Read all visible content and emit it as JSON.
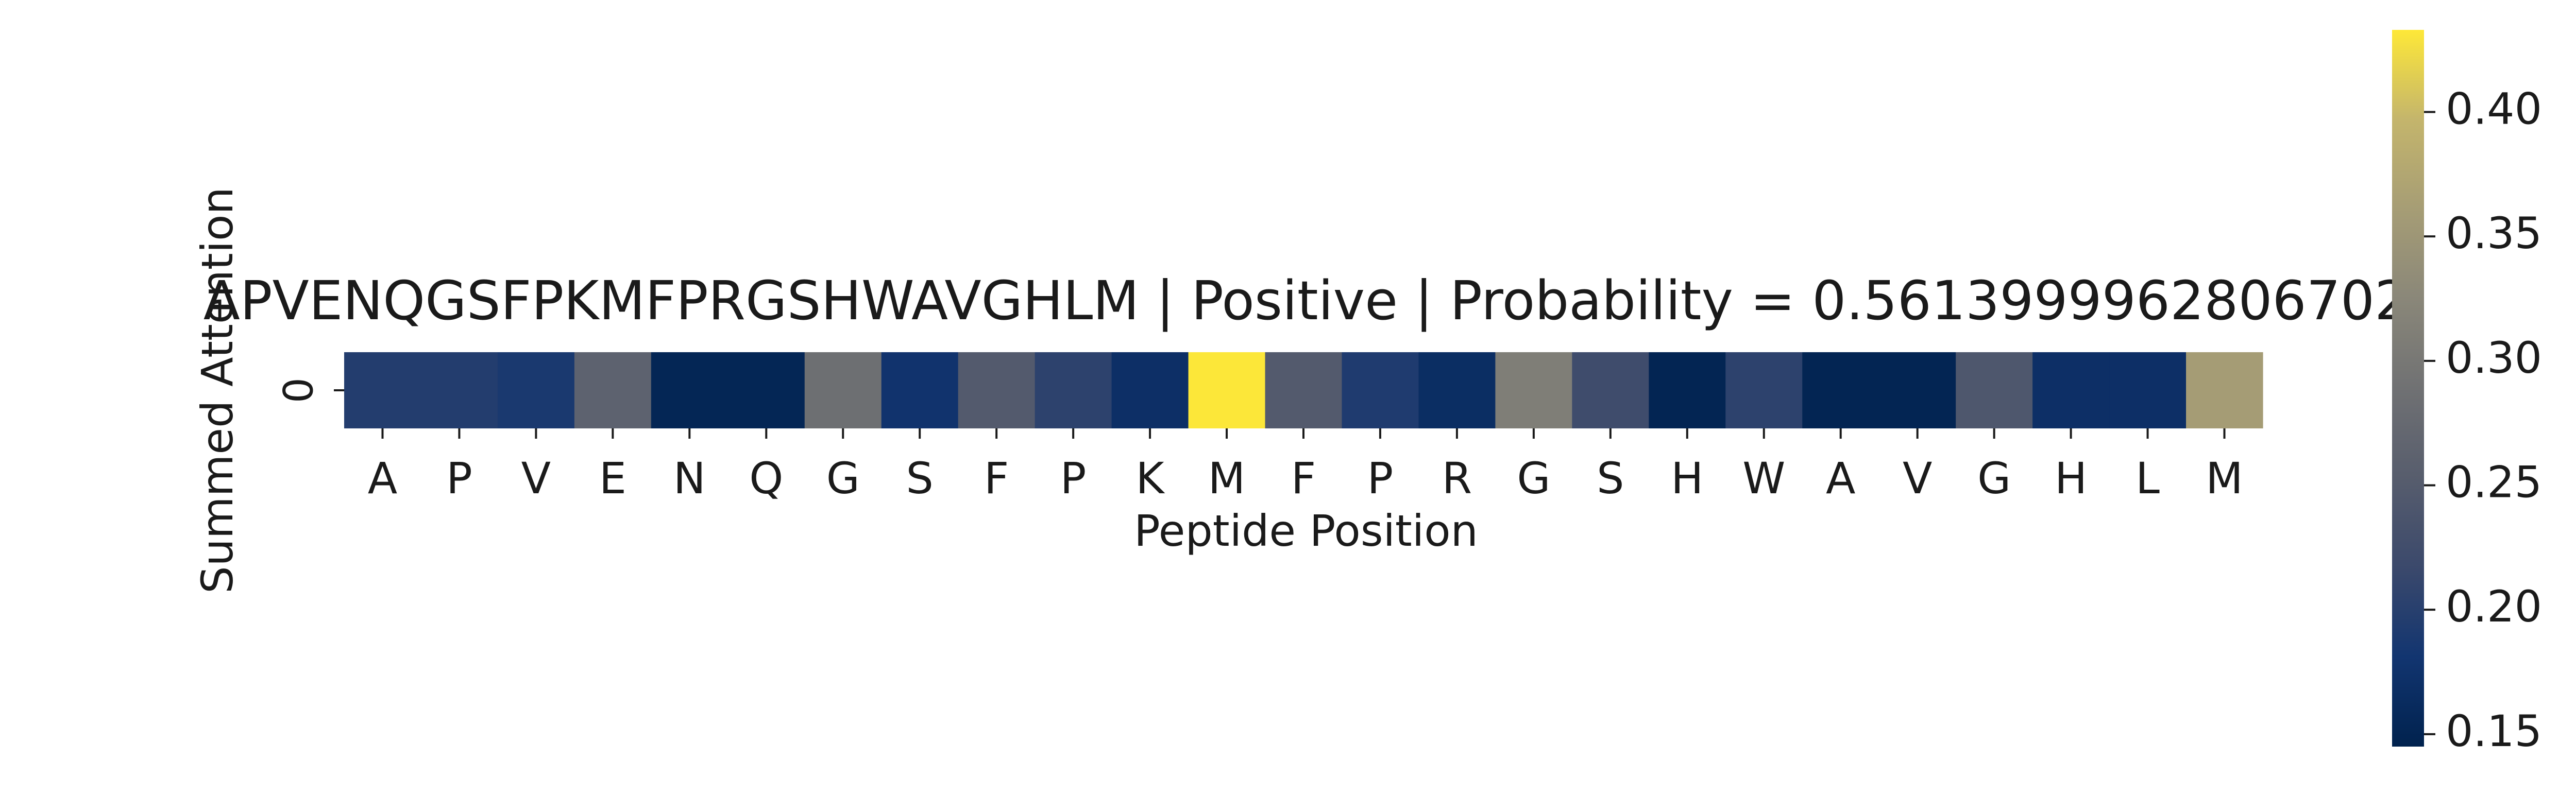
{
  "chart_data": {
    "type": "heatmap",
    "title": "APVENQGSFPKMFPRGSHWAVGHLM | Positive | Probability = 0.5613999962806702",
    "xlabel": "Peptide Position",
    "ylabel": "Summed Attention",
    "y_categories": [
      "0"
    ],
    "x_categories": [
      "A",
      "P",
      "V",
      "E",
      "N",
      "Q",
      "G",
      "S",
      "F",
      "P",
      "K",
      "M",
      "F",
      "P",
      "R",
      "G",
      "S",
      "H",
      "W",
      "A",
      "V",
      "G",
      "H",
      "L",
      "M"
    ],
    "values": [
      [
        0.196,
        0.196,
        0.188,
        0.262,
        0.152,
        0.152,
        0.285,
        0.178,
        0.248,
        0.205,
        0.17,
        0.432,
        0.248,
        0.192,
        0.167,
        0.31,
        0.222,
        0.15,
        0.205,
        0.15,
        0.15,
        0.242,
        0.17,
        0.17,
        0.36
      ]
    ],
    "colormap": "cividis",
    "colorbar": {
      "range": [
        0.145,
        0.433
      ],
      "ticks": [
        0.15,
        0.2,
        0.25,
        0.3,
        0.35,
        0.4
      ],
      "tick_labels": [
        "0.15",
        "0.20",
        "0.25",
        "0.30",
        "0.35",
        "0.40"
      ]
    }
  }
}
